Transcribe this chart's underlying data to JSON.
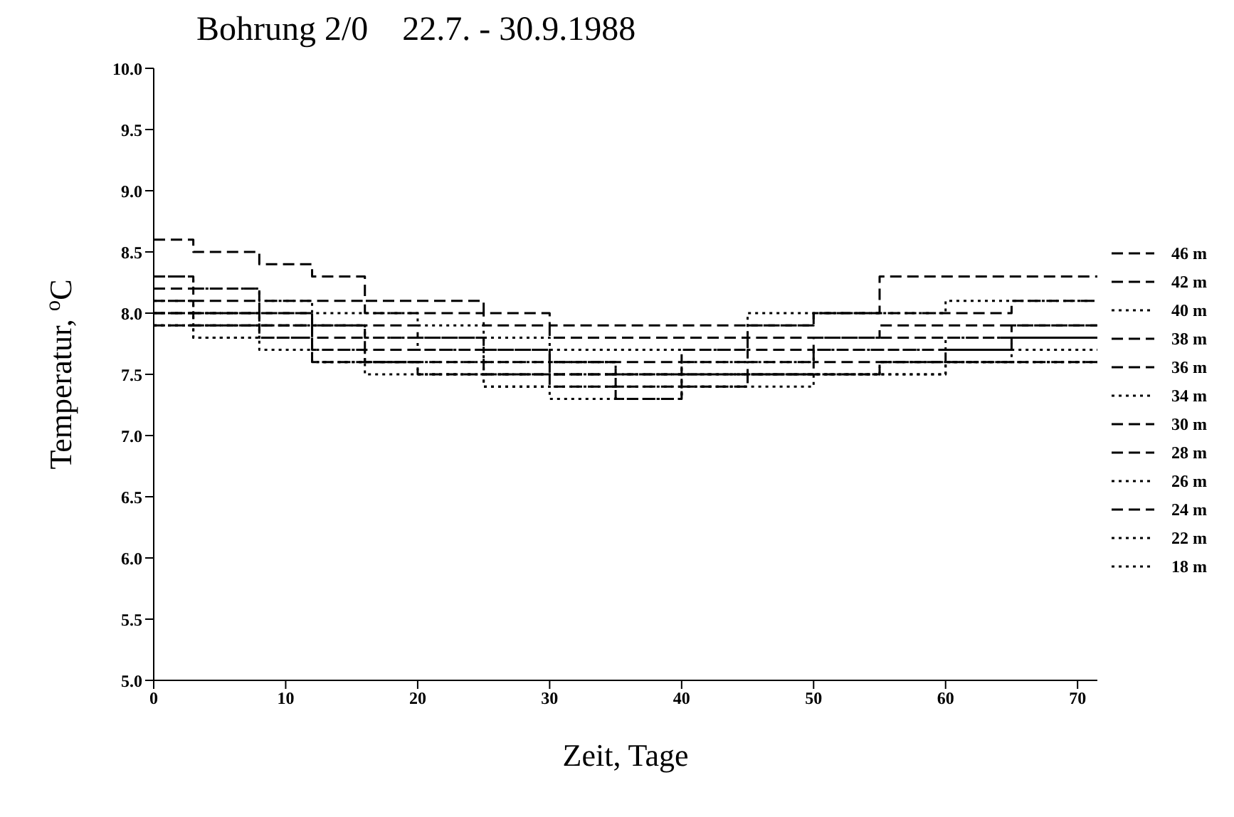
{
  "chart_data": {
    "type": "step",
    "title": "Bohrung 2/0    22.7. - 30.9.1988",
    "xlabel": "Zeit, Tage",
    "ylabel": "Temperatur, $^{o}$C",
    "x": [
      0,
      3,
      8,
      12,
      16,
      20,
      25,
      30,
      35,
      40,
      45,
      50,
      55,
      60,
      65,
      71.5
    ],
    "xlim": [
      0,
      71.5
    ],
    "xticks": [
      0,
      10,
      20,
      30,
      40,
      50,
      60,
      70
    ],
    "ylim": [
      5,
      10
    ],
    "yticks": [
      {
        "value": 5,
        "label": "5.0"
      },
      {
        "value": 5.5,
        "label": "5.5"
      },
      {
        "value": 6,
        "label": "6.0"
      },
      {
        "value": 6.5,
        "label": "6.5"
      },
      {
        "value": 7,
        "label": "7.0"
      },
      {
        "value": 7.5,
        "label": "7.5"
      },
      {
        "value": 8,
        "label": "8.0"
      },
      {
        "value": 8.5,
        "label": "8.5"
      },
      {
        "value": 9,
        "label": "9.0"
      },
      {
        "value": 9.5,
        "label": "9.5"
      },
      {
        "value": 10,
        "label": "10.0"
      }
    ],
    "grid": false,
    "legend": "right",
    "marker": "none",
    "series": [
      {
        "name": "46 m",
        "color": "#000000",
        "line_style": "dashed",
        "values": [
          8.6,
          8.5,
          8.4,
          8.3,
          8.1,
          8.1,
          8.0,
          7.9,
          7.9,
          7.9,
          7.9,
          8.0,
          8.3,
          8.3,
          8.3,
          8.3
        ]
      },
      {
        "name": "42 m",
        "color": "#000000",
        "line_style": "dashed",
        "values": [
          8.3,
          8.2,
          8.1,
          8.1,
          8.0,
          8.0,
          7.9,
          7.8,
          7.8,
          7.8,
          7.9,
          8.0,
          8.0,
          8.0,
          8.1,
          8.1
        ]
      },
      {
        "name": "40 m",
        "color": "#000000",
        "line_style": "dotted",
        "values": [
          8.3,
          8.2,
          8.1,
          8.0,
          8.0,
          7.9,
          7.8,
          7.7,
          7.7,
          7.7,
          8.0,
          8.0,
          8.0,
          8.1,
          8.1,
          8.1
        ]
      },
      {
        "name": "38 m",
        "color": "#000000",
        "line_style": "dashed",
        "values": [
          8.2,
          8.1,
          8.0,
          7.9,
          7.9,
          7.8,
          7.7,
          7.6,
          7.6,
          7.7,
          7.8,
          7.8,
          7.9,
          7.9,
          7.9,
          7.9
        ]
      },
      {
        "name": "36 m",
        "color": "#000000",
        "line_style": "dashed",
        "values": [
          8.1,
          8.0,
          8.0,
          7.9,
          7.8,
          7.8,
          7.7,
          7.6,
          7.5,
          7.6,
          7.7,
          7.8,
          7.8,
          7.8,
          7.9,
          7.9
        ]
      },
      {
        "name": "34 m",
        "color": "#000000",
        "line_style": "dotted",
        "values": [
          8.1,
          8.0,
          7.9,
          7.9,
          7.8,
          7.7,
          7.6,
          7.6,
          7.5,
          7.6,
          7.6,
          7.7,
          7.7,
          7.8,
          7.8,
          7.8
        ]
      },
      {
        "name": "30 m",
        "color": "#000000",
        "line_style": "dashed",
        "values": [
          8.0,
          8.0,
          7.9,
          7.8,
          7.7,
          7.7,
          7.6,
          7.5,
          7.5,
          7.5,
          7.6,
          7.7,
          7.7,
          7.7,
          7.8,
          7.8
        ]
      },
      {
        "name": "28 m",
        "color": "#000000",
        "line_style": "dashed",
        "values": [
          8.0,
          7.9,
          7.9,
          7.7,
          7.6,
          7.6,
          7.5,
          7.5,
          7.4,
          7.5,
          7.5,
          7.6,
          7.6,
          7.7,
          7.8,
          7.8
        ]
      },
      {
        "name": "26 m",
        "color": "#000000",
        "line_style": "dotted",
        "values": [
          8.0,
          7.9,
          7.8,
          7.7,
          7.6,
          7.6,
          7.5,
          7.5,
          7.4,
          7.5,
          7.5,
          7.5,
          7.6,
          7.6,
          7.7,
          7.7
        ]
      },
      {
        "name": "24 m",
        "color": "#000000",
        "line_style": "dashed",
        "values": [
          7.9,
          7.9,
          7.8,
          7.6,
          7.6,
          7.5,
          7.5,
          7.4,
          7.3,
          7.4,
          7.5,
          7.5,
          7.6,
          7.6,
          7.6,
          7.6
        ]
      },
      {
        "name": "22 m",
        "color": "#000000",
        "line_style": "dotted",
        "values": [
          7.9,
          7.8,
          7.8,
          7.6,
          7.6,
          7.5,
          7.4,
          7.4,
          7.3,
          7.4,
          7.5,
          7.5,
          7.5,
          7.6,
          7.6,
          7.6
        ]
      },
      {
        "name": "18 m",
        "color": "#000000",
        "line_style": "dotted",
        "values": [
          7.9,
          7.8,
          7.7,
          7.6,
          7.5,
          7.5,
          7.4,
          7.3,
          7.3,
          7.4,
          7.4,
          7.5,
          7.5,
          7.6,
          7.6,
          7.6
        ]
      }
    ]
  }
}
